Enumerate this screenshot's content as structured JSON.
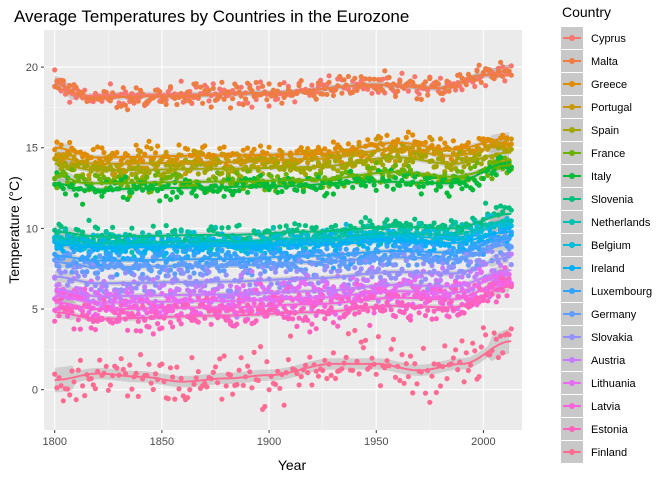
{
  "chart_data": {
    "type": "scatter",
    "title": "Average Temperatures by Countries in the Eurozone",
    "xlabel": "Year",
    "ylabel": "Temperature (°C)",
    "xlim": [
      1795,
      2018
    ],
    "ylim": [
      -2.5,
      22.3
    ],
    "x_ticks": [
      1800,
      1850,
      1900,
      1950,
      2000
    ],
    "y_ticks": [
      0,
      5,
      10,
      15,
      20
    ],
    "x_tick_labels": [
      "1800",
      "1850",
      "1900",
      "1950",
      "2000"
    ],
    "y_tick_labels": [
      "0",
      "5",
      "10",
      "15",
      "20"
    ],
    "x_range": [
      1800,
      2013
    ],
    "smooth": "loess with grey confidence band",
    "legend_title": "Country",
    "legend_position": "right",
    "series": [
      {
        "name": "Cyprus",
        "color": "#F8766D",
        "trend": [
          [
            1800,
            19.1
          ],
          [
            1810,
            18.2
          ],
          [
            1830,
            18.3
          ],
          [
            1870,
            18.3
          ],
          [
            1900,
            18.4
          ],
          [
            1950,
            18.9
          ],
          [
            1980,
            18.7
          ],
          [
            2000,
            19.5
          ],
          [
            2013,
            19.8
          ]
        ]
      },
      {
        "name": "Malta",
        "color": "#EE7D43",
        "trend": [
          [
            1800,
            19.0
          ],
          [
            1815,
            18.1
          ],
          [
            1850,
            18.2
          ],
          [
            1900,
            18.4
          ],
          [
            1950,
            18.9
          ],
          [
            1980,
            18.7
          ],
          [
            2000,
            19.5
          ],
          [
            2013,
            19.8
          ]
        ]
      },
      {
        "name": "Greece",
        "color": "#E08B00",
        "trend": [
          [
            1800,
            15.0
          ],
          [
            1820,
            14.4
          ],
          [
            1870,
            14.5
          ],
          [
            1920,
            14.6
          ],
          [
            1960,
            15.3
          ],
          [
            1985,
            14.9
          ],
          [
            2013,
            15.6
          ]
        ]
      },
      {
        "name": "Portugal",
        "color": "#C99800",
        "trend": [
          [
            1800,
            14.4
          ],
          [
            1820,
            14.0
          ],
          [
            1880,
            14.1
          ],
          [
            1920,
            14.3
          ],
          [
            1960,
            14.9
          ],
          [
            1985,
            14.5
          ],
          [
            2013,
            15.2
          ]
        ]
      },
      {
        "name": "Spain",
        "color": "#A3A500",
        "trend": [
          [
            1800,
            14.0
          ],
          [
            1820,
            13.6
          ],
          [
            1880,
            13.7
          ],
          [
            1920,
            13.8
          ],
          [
            1960,
            14.4
          ],
          [
            1985,
            14.0
          ],
          [
            2013,
            14.7
          ]
        ]
      },
      {
        "name": "France",
        "color": "#6BB100",
        "trend": [
          [
            1800,
            13.3
          ],
          [
            1815,
            12.8
          ],
          [
            1880,
            12.9
          ],
          [
            1920,
            13.0
          ],
          [
            1960,
            13.5
          ],
          [
            1985,
            13.2
          ],
          [
            2013,
            13.9
          ]
        ]
      },
      {
        "name": "Italy",
        "color": "#00BA38",
        "trend": [
          [
            1800,
            12.8
          ],
          [
            1815,
            12.4
          ],
          [
            1850,
            12.5
          ],
          [
            1900,
            12.6
          ],
          [
            1950,
            12.9
          ],
          [
            1985,
            12.8
          ],
          [
            2013,
            14.1
          ]
        ]
      },
      {
        "name": "Slovenia",
        "color": "#00BF7D",
        "trend": [
          [
            1800,
            9.8
          ],
          [
            1820,
            9.5
          ],
          [
            1880,
            9.6
          ],
          [
            1920,
            9.8
          ],
          [
            1960,
            10.1
          ],
          [
            1985,
            10.0
          ],
          [
            2013,
            10.9
          ]
        ]
      },
      {
        "name": "Netherlands",
        "color": "#00C0AF",
        "trend": [
          [
            1800,
            9.4
          ],
          [
            1820,
            9.1
          ],
          [
            1880,
            9.2
          ],
          [
            1920,
            9.4
          ],
          [
            1960,
            9.7
          ],
          [
            1985,
            9.6
          ],
          [
            2013,
            10.5
          ]
        ]
      },
      {
        "name": "Belgium",
        "color": "#00BCD8",
        "trend": [
          [
            1800,
            9.2
          ],
          [
            1820,
            8.9
          ],
          [
            1880,
            9.0
          ],
          [
            1920,
            9.2
          ],
          [
            1960,
            9.5
          ],
          [
            1985,
            9.4
          ],
          [
            2013,
            10.3
          ]
        ]
      },
      {
        "name": "Ireland",
        "color": "#00B0F6",
        "trend": [
          [
            1800,
            9.0
          ],
          [
            1820,
            8.8
          ],
          [
            1880,
            8.9
          ],
          [
            1920,
            9.0
          ],
          [
            1960,
            9.2
          ],
          [
            1985,
            9.1
          ],
          [
            2013,
            9.8
          ]
        ]
      },
      {
        "name": "Luxembourg",
        "color": "#35A2FF",
        "trend": [
          [
            1800,
            8.3
          ],
          [
            1820,
            8.0
          ],
          [
            1880,
            8.1
          ],
          [
            1920,
            8.3
          ],
          [
            1960,
            8.6
          ],
          [
            1985,
            8.5
          ],
          [
            2013,
            9.4
          ]
        ]
      },
      {
        "name": "Germany",
        "color": "#619CFF",
        "trend": [
          [
            1800,
            7.9
          ],
          [
            1820,
            7.6
          ],
          [
            1880,
            7.7
          ],
          [
            1920,
            7.9
          ],
          [
            1960,
            8.2
          ],
          [
            1985,
            8.1
          ],
          [
            2013,
            9.0
          ]
        ]
      },
      {
        "name": "Slovakia",
        "color": "#9590FF",
        "trend": [
          [
            1800,
            7.0
          ],
          [
            1820,
            6.6
          ],
          [
            1880,
            6.7
          ],
          [
            1920,
            6.9
          ],
          [
            1960,
            7.3
          ],
          [
            1985,
            7.2
          ],
          [
            2013,
            8.2
          ]
        ]
      },
      {
        "name": "Austria",
        "color": "#C77CFF",
        "trend": [
          [
            1800,
            6.2
          ],
          [
            1820,
            5.8
          ],
          [
            1880,
            5.9
          ],
          [
            1920,
            6.1
          ],
          [
            1960,
            6.5
          ],
          [
            1985,
            6.4
          ],
          [
            2013,
            7.4
          ]
        ]
      },
      {
        "name": "Lithuania",
        "color": "#E76BF3",
        "trend": [
          [
            1800,
            5.8
          ],
          [
            1820,
            5.4
          ],
          [
            1880,
            5.5
          ],
          [
            1920,
            5.7
          ],
          [
            1960,
            6.1
          ],
          [
            1985,
            6.0
          ],
          [
            2013,
            7.2
          ]
        ]
      },
      {
        "name": "Latvia",
        "color": "#FA62DB",
        "trend": [
          [
            1800,
            5.4
          ],
          [
            1820,
            5.0
          ],
          [
            1880,
            5.1
          ],
          [
            1920,
            5.3
          ],
          [
            1960,
            5.7
          ],
          [
            1985,
            5.6
          ],
          [
            2013,
            6.8
          ]
        ]
      },
      {
        "name": "Estonia",
        "color": "#FF62BC",
        "trend": [
          [
            1800,
            4.8
          ],
          [
            1820,
            4.4
          ],
          [
            1880,
            4.6
          ],
          [
            1920,
            4.8
          ],
          [
            1960,
            5.2
          ],
          [
            1985,
            5.1
          ],
          [
            2013,
            6.4
          ]
        ]
      },
      {
        "name": "Finland",
        "color": "#FF6C91",
        "trend": [
          [
            1800,
            0.6
          ],
          [
            1820,
            1.0
          ],
          [
            1840,
            0.8
          ],
          [
            1860,
            0.5
          ],
          [
            1880,
            0.7
          ],
          [
            1900,
            0.9
          ],
          [
            1930,
            1.6
          ],
          [
            1950,
            1.6
          ],
          [
            1970,
            1.2
          ],
          [
            1990,
            1.6
          ],
          [
            2013,
            3.0
          ]
        ]
      }
    ]
  }
}
